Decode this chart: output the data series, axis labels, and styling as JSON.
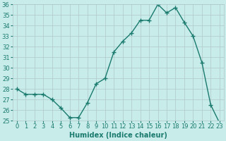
{
  "x": [
    0,
    1,
    2,
    3,
    4,
    5,
    6,
    7,
    8,
    9,
    10,
    11,
    12,
    13,
    14,
    15,
    16,
    17,
    18,
    19,
    20,
    21,
    22,
    23
  ],
  "y": [
    28.0,
    27.5,
    27.5,
    27.5,
    27.0,
    26.2,
    25.3,
    25.3,
    26.7,
    28.5,
    29.0,
    31.5,
    32.5,
    33.3,
    34.5,
    34.5,
    36.0,
    35.2,
    35.7,
    34.3,
    33.0,
    30.5,
    26.5,
    24.8
  ],
  "line_color": "#1a7a6e",
  "marker": "+",
  "marker_size": 4,
  "bg_color": "#c8ecea",
  "grid_color": "#b0c8c8",
  "xlabel": "Humidex (Indice chaleur)",
  "ylim": [
    25,
    36
  ],
  "xlim_min": -0.5,
  "xlim_max": 23.5,
  "yticks": [
    25,
    26,
    27,
    28,
    29,
    30,
    31,
    32,
    33,
    34,
    35,
    36
  ],
  "xticks": [
    0,
    1,
    2,
    3,
    4,
    5,
    6,
    7,
    8,
    9,
    10,
    11,
    12,
    13,
    14,
    15,
    16,
    17,
    18,
    19,
    20,
    21,
    22,
    23
  ],
  "xlabel_fontsize": 7,
  "tick_fontsize": 6,
  "line_width": 1.0
}
